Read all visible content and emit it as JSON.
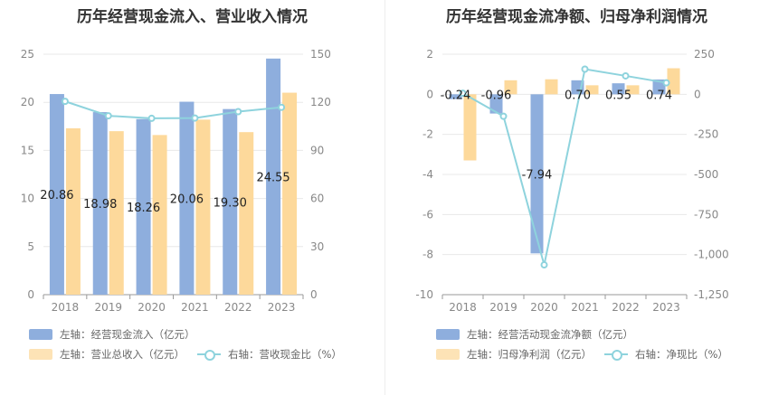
{
  "colors": {
    "bar1": "#8eaedd",
    "bar2": "#fdd99b",
    "line": "#8ed3dd",
    "grid": "#e8e8e8",
    "axis": "#999999"
  },
  "chart_data": [
    {
      "type": "bar",
      "title": "历年经营现金流入、营业收入情况",
      "categories": [
        "2018",
        "2019",
        "2020",
        "2021",
        "2022",
        "2023"
      ],
      "left_axis": {
        "ylim": [
          0,
          25
        ],
        "ticks": [
          "0",
          "5",
          "10",
          "15",
          "20",
          "25"
        ]
      },
      "right_axis": {
        "ylim": [
          0,
          150
        ],
        "ticks": [
          "0",
          "30",
          "60",
          "90",
          "120",
          "150"
        ]
      },
      "series": [
        {
          "name": "左轴：经营现金流入（亿元）",
          "axis": "left",
          "type": "bar",
          "values": [
            20.86,
            18.98,
            18.26,
            20.06,
            19.3,
            24.55
          ],
          "labels": [
            "20.86",
            "18.98",
            "18.26",
            "20.06",
            "19.30",
            "24.55"
          ]
        },
        {
          "name": "左轴：营业总收入（亿元）",
          "axis": "left",
          "type": "bar",
          "values": [
            17.3,
            17.0,
            16.6,
            18.2,
            16.9,
            21.0
          ]
        },
        {
          "name": "右轴：营收现金比（%）",
          "axis": "right",
          "type": "line",
          "values": [
            120.6,
            111.6,
            110.0,
            110.2,
            114.2,
            116.9
          ]
        }
      ]
    },
    {
      "type": "bar",
      "title": "历年经营现金流净额、归母净利润情况",
      "categories": [
        "2018",
        "2019",
        "2020",
        "2021",
        "2022",
        "2023"
      ],
      "left_axis": {
        "ylim": [
          -10,
          2
        ],
        "ticks": [
          "-10",
          "-8",
          "-6",
          "-4",
          "-2",
          "0",
          "2"
        ]
      },
      "right_axis": {
        "ylim": [
          -1250,
          250
        ],
        "ticks": [
          "-1,250",
          "-1,000",
          "-750",
          "-500",
          "-250",
          "0",
          "250"
        ]
      },
      "series": [
        {
          "name": "左轴：经营活动现金流净额（亿元）",
          "axis": "left",
          "type": "bar",
          "values": [
            -0.24,
            -0.96,
            -7.94,
            0.7,
            0.55,
            0.74
          ],
          "labels": [
            "-0.24",
            "-0.96",
            "-7.94",
            "0.70",
            "0.55",
            "0.74"
          ]
        },
        {
          "name": "左轴：归母净利润（亿元）",
          "axis": "left",
          "type": "bar",
          "values": [
            -3.3,
            0.7,
            0.75,
            0.45,
            0.45,
            1.3
          ]
        },
        {
          "name": "右轴：净现比（%）",
          "axis": "right",
          "type": "line",
          "values": [
            7,
            -137,
            -1064,
            157,
            115,
            72
          ]
        }
      ]
    }
  ]
}
